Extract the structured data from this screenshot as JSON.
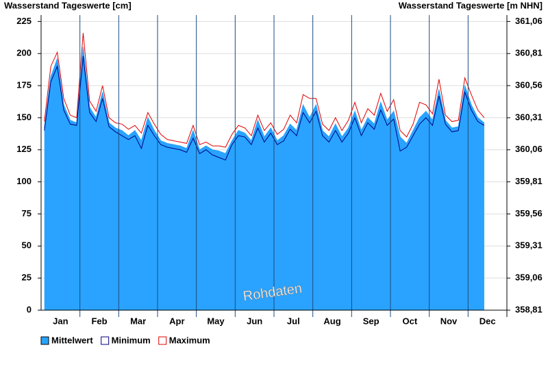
{
  "chart_data": {
    "type": "area",
    "title": "Wasserstand Tageswerte [cm]",
    "y2_title": "Wasserstand Tageswerte [m NHN]",
    "annotation": "Rohdaten",
    "categories": [
      null,
      null,
      "Jan",
      null,
      null,
      null,
      null,
      null,
      "Feb",
      null,
      null,
      null,
      null,
      null,
      "Mar",
      null,
      null,
      null,
      null,
      null,
      "Apr",
      null,
      null,
      null,
      null,
      null,
      "May",
      null,
      null,
      null,
      null,
      null,
      "Jun",
      null,
      null,
      null,
      null,
      null,
      "Jul",
      null,
      null,
      null,
      null,
      null,
      "Aug",
      null,
      null,
      null,
      null,
      null,
      "Sep",
      null,
      null,
      null,
      null,
      null,
      "Oct",
      null,
      null,
      null,
      null,
      null,
      "Nov",
      null,
      null,
      null,
      null,
      null,
      "Dec",
      null,
      null,
      null
    ],
    "series": [
      {
        "name": "Mittelwert",
        "color": "#29a3ff",
        "values": [
          142,
          182,
          196,
          160,
          148,
          146,
          205,
          158,
          150,
          170,
          146,
          142,
          140,
          136,
          140,
          132,
          150,
          140,
          132,
          130,
          129,
          128,
          126,
          140,
          125,
          128,
          125,
          124,
          122,
          132,
          140,
          138,
          132,
          148,
          135,
          142,
          132,
          136,
          145,
          140,
          160,
          150,
          160,
          140,
          135,
          145,
          135,
          142,
          155,
          140,
          150,
          145,
          162,
          148,
          155,
          135,
          130,
          140,
          150,
          155,
          148,
          172,
          148,
          142,
          143,
          175,
          160,
          150,
          146,
          null,
          null,
          null
        ]
      },
      {
        "name": "Minimum",
        "color": "#000080",
        "values": [
          140,
          178,
          190,
          156,
          145,
          144,
          198,
          154,
          147,
          165,
          143,
          139,
          136,
          133,
          136,
          126,
          144,
          136,
          129,
          127,
          126,
          125,
          123,
          134,
          122,
          125,
          121,
          119,
          117,
          129,
          136,
          135,
          129,
          142,
          131,
          138,
          129,
          132,
          141,
          136,
          154,
          146,
          155,
          136,
          131,
          140,
          131,
          138,
          150,
          136,
          146,
          141,
          156,
          144,
          149,
          124,
          127,
          136,
          145,
          150,
          144,
          167,
          145,
          139,
          140,
          170,
          156,
          147,
          144,
          null,
          null,
          null
        ]
      },
      {
        "name": "Maximum",
        "color": "#e00000",
        "values": [
          147,
          190,
          201,
          165,
          152,
          150,
          216,
          163,
          155,
          175,
          150,
          146,
          145,
          141,
          144,
          138,
          154,
          145,
          137,
          133,
          132,
          131,
          130,
          144,
          129,
          131,
          128,
          128,
          127,
          137,
          144,
          142,
          136,
          152,
          140,
          146,
          137,
          141,
          152,
          146,
          168,
          165,
          165,
          145,
          140,
          150,
          140,
          148,
          162,
          146,
          157,
          152,
          169,
          155,
          164,
          140,
          135,
          145,
          162,
          160,
          153,
          180,
          152,
          147,
          148,
          181,
          168,
          156,
          150,
          null,
          null,
          null
        ]
      }
    ],
    "ylim": [
      0,
      230
    ],
    "yticks": [
      0,
      25,
      50,
      75,
      100,
      125,
      150,
      175,
      200,
      225
    ],
    "y2lim": [
      358.81,
      361.11
    ],
    "y2ticks": [
      {
        "value": 358.81,
        "label": "358,81"
      },
      {
        "value": 359.06,
        "label": "359,06"
      },
      {
        "value": 359.31,
        "label": "359,31"
      },
      {
        "value": 359.56,
        "label": "359,56"
      },
      {
        "value": 359.81,
        "label": "359,81"
      },
      {
        "value": 360.06,
        "label": "360,06"
      },
      {
        "value": 360.31,
        "label": "360,31"
      },
      {
        "value": 360.56,
        "label": "360,56"
      },
      {
        "value": 360.81,
        "label": "360,81"
      },
      {
        "value": 361.06,
        "label": "361,06"
      }
    ],
    "grid": true
  }
}
